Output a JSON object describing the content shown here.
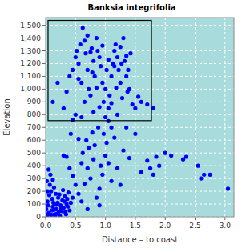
{
  "chart_data": {
    "type": "scatter",
    "title": "Banksia integrifolia",
    "x_label": "Distance – to coast",
    "y_label": "Elevation",
    "color": "#0000ff",
    "marker": "circle",
    "grid": true,
    "xlim": [
      0,
      3.15
    ],
    "ylim": [
      0,
      1560
    ],
    "xticks": [
      {
        "value": 0,
        "label": "0.0"
      },
      {
        "value": 0.5,
        "label": "0.5"
      },
      {
        "value": 1,
        "label": "1.0"
      },
      {
        "value": 1.5,
        "label": "1.5"
      },
      {
        "value": 2,
        "label": "2.0"
      },
      {
        "value": 2.5,
        "label": "2.5"
      },
      {
        "value": 3,
        "label": "3.0"
      }
    ],
    "yticks": [
      0,
      100,
      200,
      300,
      400,
      500,
      600,
      700,
      800,
      900,
      {
        "value": 1000,
        "label": "1,000"
      },
      {
        "value": 1100,
        "label": "1,100"
      },
      {
        "value": 1200,
        "label": "1,200"
      },
      {
        "value": 1300,
        "label": "1,300"
      },
      {
        "value": 1400,
        "label": "1,400"
      },
      {
        "value": 1500,
        "label": "1,500"
      }
    ],
    "highlight_box": {
      "xlim": [
        0.04,
        1.77
      ],
      "ylim": [
        753,
        1538
      ]
    },
    "x": [
      0.02,
      0.05,
      0.08,
      0.1,
      0.12,
      0.15,
      0.18,
      0.2,
      0.22,
      0.25,
      0.28,
      0.3,
      0.32,
      0.35,
      0.38,
      0.4,
      0.03,
      0.06,
      0.09,
      0.11,
      0.14,
      0.17,
      0.19,
      0.21,
      0.24,
      0.27,
      0.29,
      0.33,
      0.36,
      0.01,
      0.04,
      0.07,
      0.13,
      0.16,
      0.23,
      0.26,
      0.31,
      0.34,
      0.37,
      0.42,
      0.45,
      0.02,
      0.05,
      0.08,
      0.12,
      0.03,
      0.1,
      0.14,
      0.18,
      0.45,
      0.5,
      0.55,
      0.6,
      0.65,
      0.7,
      0.75,
      0.8,
      0.85,
      0.9,
      0.95,
      1.0,
      0.55,
      0.62,
      0.68,
      0.72,
      0.78,
      0.82,
      0.88,
      0.92,
      0.97,
      1.02,
      1.05,
      1.1,
      1.15,
      1.2,
      1.25,
      1.3,
      1.35,
      1.4,
      1.5,
      1.6,
      0.3,
      0.35,
      0.4,
      0.42,
      0.5,
      0.45,
      0.7,
      0.9,
      1.1,
      0.6,
      1.05,
      1.7,
      1.75,
      1.8,
      1.85,
      1.9,
      2.0,
      2.1,
      2.3,
      2.35,
      2.55,
      2.6,
      2.65,
      2.75,
      3.05,
      0.12,
      0.2,
      0.3,
      0.35,
      0.4,
      0.45,
      0.5,
      0.52,
      0.55,
      0.58,
      0.6,
      0.62,
      0.65,
      0.67,
      0.7,
      0.72,
      0.75,
      0.77,
      0.8,
      0.82,
      0.85,
      0.87,
      0.9,
      0.92,
      0.95,
      0.97,
      1.0,
      1.02,
      1.05,
      1.07,
      1.1,
      1.12,
      1.15,
      1.17,
      1.2,
      1.22,
      1.25,
      1.27,
      1.3,
      1.32,
      1.35,
      1.37,
      1.4,
      1.42,
      1.45,
      1.5,
      1.55,
      1.6,
      1.7,
      1.8,
      0.6,
      0.8,
      1.0,
      1.2,
      0.9,
      1.1,
      0.7,
      0.75,
      0.85,
      1.05,
      1.15,
      1.25,
      1.35,
      0.55,
      0.65,
      0.95,
      1.18,
      1.28,
      1.38,
      0.78
    ],
    "values": [
      10,
      30,
      15,
      50,
      80,
      20,
      60,
      110,
      40,
      90,
      130,
      70,
      160,
      100,
      190,
      50,
      120,
      170,
      200,
      140,
      230,
      180,
      25,
      150,
      5,
      45,
      210,
      35,
      140,
      60,
      90,
      250,
      110,
      8,
      175,
      65,
      120,
      20,
      80,
      110,
      150,
      280,
      370,
      330,
      290,
      200,
      15,
      55,
      95,
      320,
      250,
      180,
      120,
      260,
      380,
      300,
      450,
      150,
      220,
      330,
      480,
      610,
      500,
      600,
      540,
      660,
      560,
      700,
      400,
      650,
      580,
      420,
      700,
      620,
      380,
      250,
      520,
      700,
      460,
      650,
      350,
      480,
      470,
      380,
      650,
      800,
      760,
      60,
      90,
      280,
      420,
      750,
      440,
      380,
      330,
      470,
      400,
      500,
      480,
      450,
      470,
      400,
      300,
      330,
      330,
      220,
      900,
      1050,
      850,
      980,
      1100,
      1150,
      1250,
      1300,
      1200,
      1350,
      1050,
      1480,
      1380,
      1280,
      1150,
      1000,
      950,
      1320,
      1220,
      1100,
      1400,
      1300,
      1250,
      1180,
      1050,
      900,
      1000,
      1150,
      850,
      950,
      1100,
      1200,
      1300,
      1350,
      1250,
      1150,
      1050,
      1200,
      1400,
      1220,
      1100,
      980,
      1000,
      1280,
      880,
      850,
      940,
      900,
      880,
      850,
      780,
      820,
      780,
      800,
      860,
      890,
      1420,
      1290,
      1010,
      1230,
      1180,
      1330,
      1260,
      1080,
      900,
      1340,
      1010,
      930,
      1150,
      1130
    ]
  }
}
